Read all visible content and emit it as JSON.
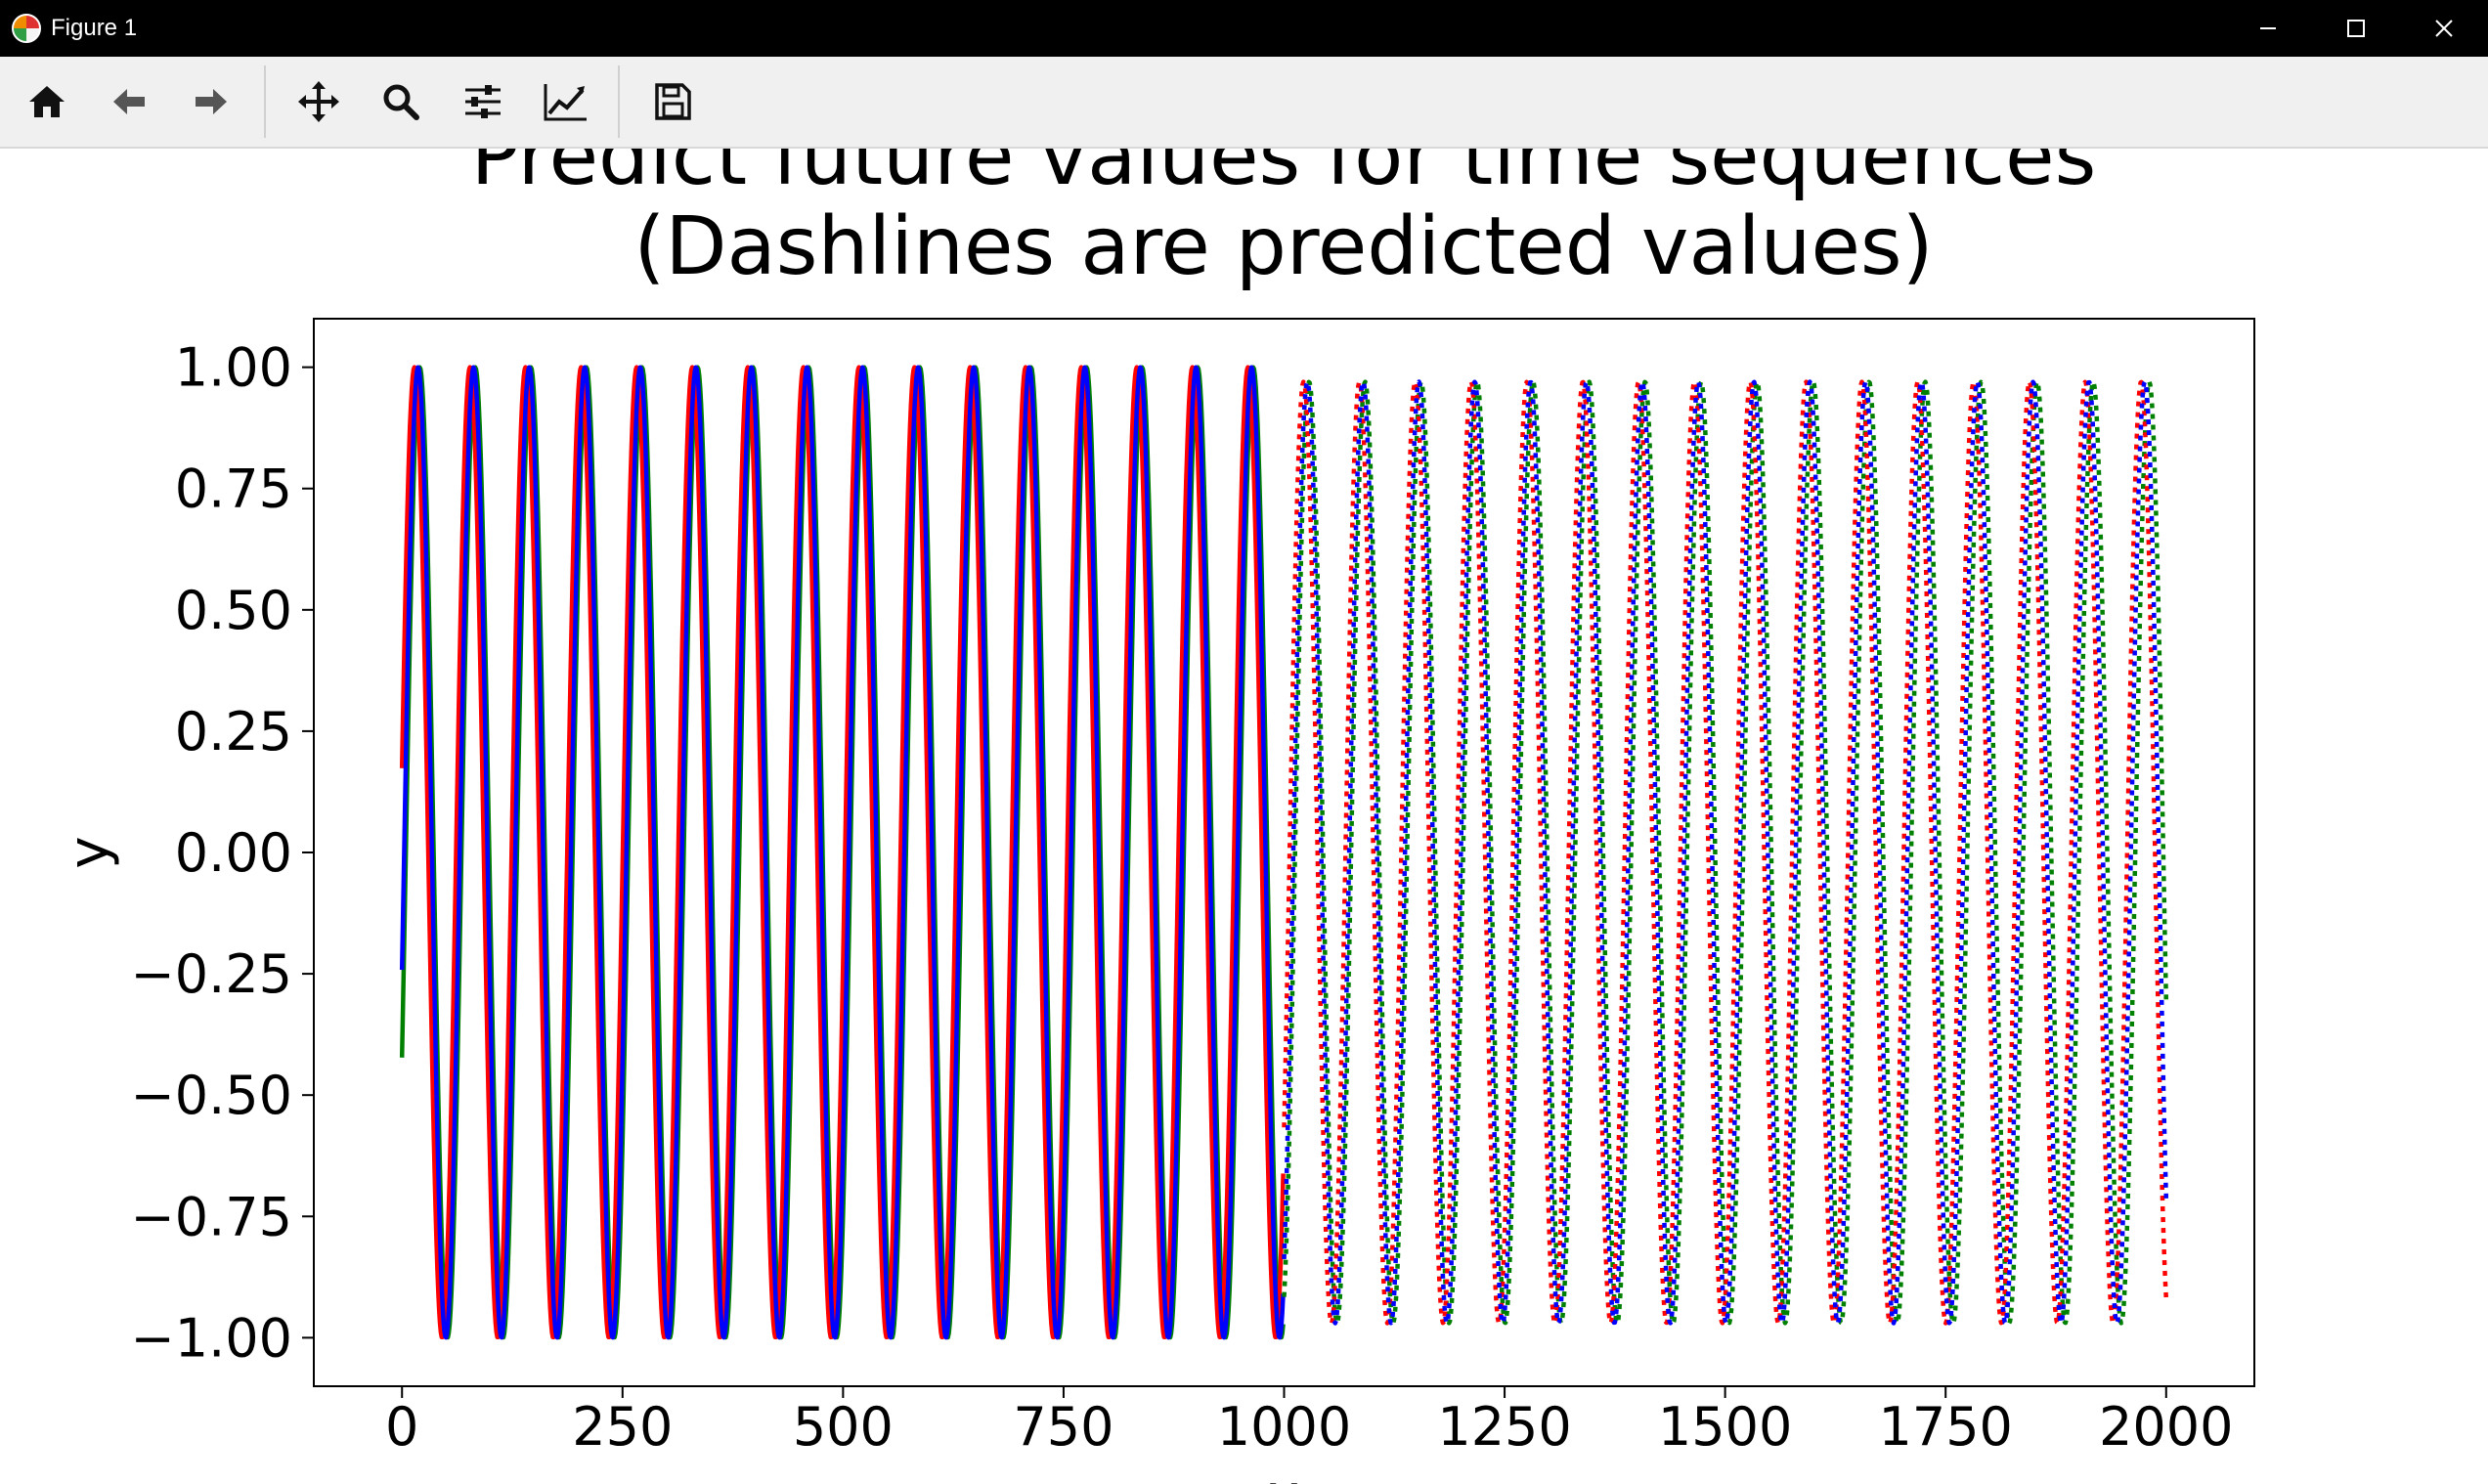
{
  "window": {
    "title": "Figure 1"
  },
  "toolbar": {
    "buttons": [
      {
        "name": "home-button",
        "icon": "home-icon"
      },
      {
        "name": "back-button",
        "icon": "arrow-left-icon"
      },
      {
        "name": "forward-button",
        "icon": "arrow-right-icon"
      },
      {
        "name": "pan-button",
        "icon": "move-icon"
      },
      {
        "name": "zoom-button",
        "icon": "magnifier-icon"
      },
      {
        "name": "configure-subplots-button",
        "icon": "sliders-icon"
      },
      {
        "name": "edit-axis-button",
        "icon": "chart-line-icon"
      },
      {
        "name": "save-button",
        "icon": "floppy-disk-icon"
      }
    ]
  },
  "chart_data": {
    "type": "line",
    "title_line1": "Predict future values for time sequences",
    "title_line2": "(Dashlines are predicted values)",
    "xlabel": "x",
    "ylabel": "y",
    "xlim": [
      -100,
      2100
    ],
    "ylim": [
      -1.1,
      1.1
    ],
    "xticks": [
      0,
      250,
      500,
      750,
      1000,
      1250,
      1500,
      1750,
      2000
    ],
    "yticks": [
      1.0,
      0.75,
      0.5,
      0.25,
      0.0,
      -0.25,
      -0.5,
      -0.75,
      -1.0
    ],
    "xtick_labels": [
      "0",
      "250",
      "500",
      "750",
      "1000",
      "1250",
      "1500",
      "1750",
      "2000"
    ],
    "ytick_labels": [
      "1.00",
      "0.75",
      "0.50",
      "0.25",
      "0.00",
      "−0.25",
      "−0.50",
      "−0.75",
      "−1.00"
    ],
    "grid": false,
    "colors": {
      "red": "#ff0000",
      "green": "#008000",
      "blue": "#0000ff"
    },
    "series": [
      {
        "color": "red",
        "segment": "actual",
        "style": "solid",
        "x_range": [
          0,
          1000
        ],
        "period": 63,
        "phase_deg": 10,
        "amplitude": 1.0
      },
      {
        "color": "green",
        "segment": "actual",
        "style": "solid",
        "x_range": [
          0,
          1000
        ],
        "period": 63,
        "phase_deg": -25,
        "amplitude": 1.0
      },
      {
        "color": "blue",
        "segment": "actual",
        "style": "solid",
        "x_range": [
          0,
          1000
        ],
        "period": 63,
        "phase_deg": -14,
        "amplitude": 1.0
      },
      {
        "color": "red",
        "segment": "predicted",
        "style": "dotted",
        "x_range": [
          1000,
          2000
        ],
        "period": 63.3,
        "amplitude": 0.97
      },
      {
        "color": "green",
        "segment": "predicted",
        "style": "dotted",
        "x_range": [
          1000,
          2000
        ],
        "period": 63.5,
        "amplitude": 0.97
      },
      {
        "color": "blue",
        "segment": "predicted",
        "style": "dotted",
        "x_range": [
          1000,
          2000
        ],
        "period": 63.3,
        "amplitude": 0.97
      }
    ]
  }
}
